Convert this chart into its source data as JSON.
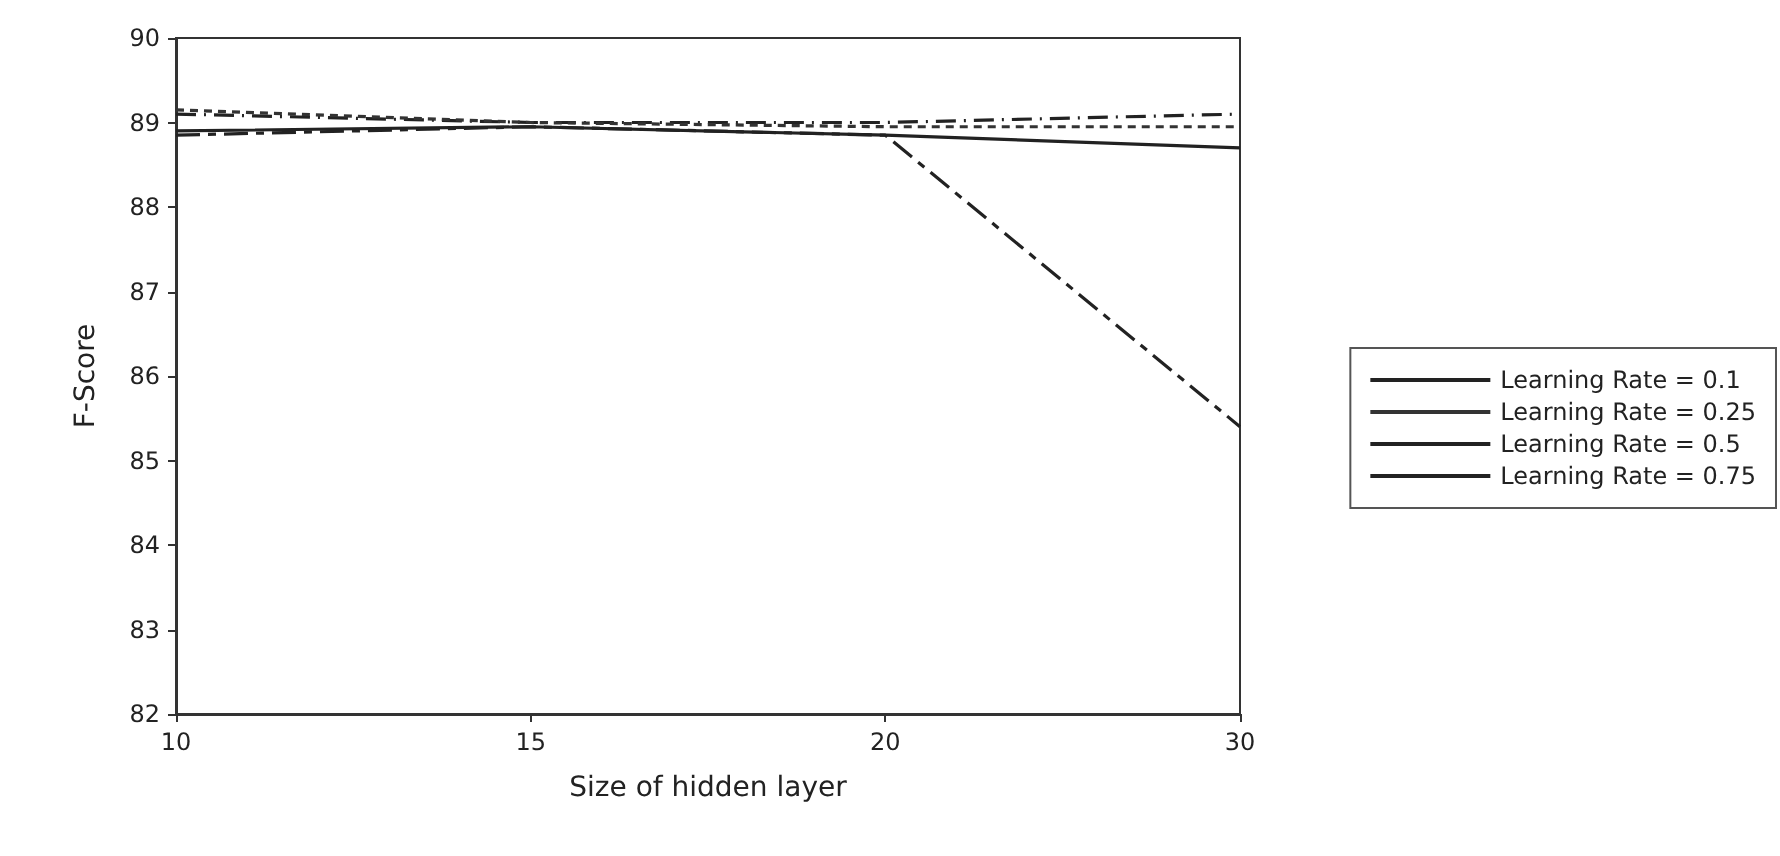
{
  "chart_data": {
    "type": "line",
    "xlabel": "Size of hidden layer",
    "ylabel": "F-Score",
    "categories": [
      "10",
      "15",
      "20",
      "30"
    ],
    "ylim": [
      82,
      90
    ],
    "yticks": [
      82,
      83,
      84,
      85,
      86,
      87,
      88,
      89,
      90
    ],
    "grid": false,
    "legend": "right",
    "marker": "none",
    "series": [
      {
        "name": "Learning Rate = 0.1",
        "color": "#222222",
        "line_style": "dashdot",
        "values": [
          89.1,
          89.0,
          89.0,
          89.1
        ]
      },
      {
        "name": "Learning Rate = 0.25",
        "color": "#333333",
        "line_style": "dotted",
        "values": [
          89.15,
          89.0,
          88.95,
          88.95
        ]
      },
      {
        "name": "Learning Rate = 0.5",
        "color": "#222222",
        "line_style": "solid",
        "values": [
          88.9,
          88.95,
          88.85,
          88.7
        ]
      },
      {
        "name": "Learning Rate = 0.75",
        "color": "#222222",
        "line_style": "dashed",
        "values": [
          88.85,
          88.95,
          88.85,
          85.4
        ]
      }
    ]
  }
}
